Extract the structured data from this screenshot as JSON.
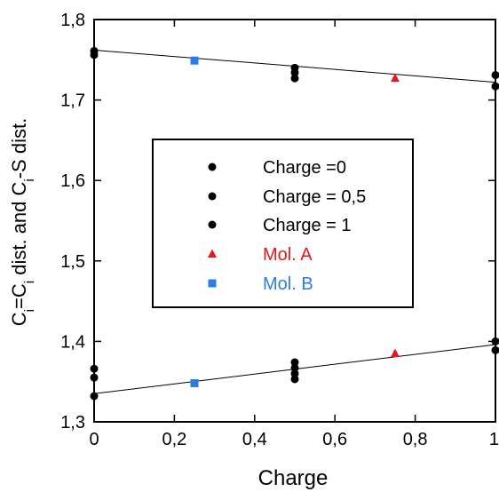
{
  "chart_data": {
    "type": "scatter",
    "xlabel": "Charge",
    "ylabel": {
      "parts": [
        {
          "text": "C",
          "sub": false
        },
        {
          "text": "i",
          "sub": true
        },
        {
          "text": "=C",
          "sub": false
        },
        {
          "text": "i",
          "sub": true
        },
        {
          "text": " dist. and C",
          "sub": false
        },
        {
          "text": "i",
          "sub": true
        },
        {
          "text": "-S dist.",
          "sub": false
        }
      ]
    },
    "xlim": [
      0,
      1
    ],
    "ylim": [
      1.3,
      1.8
    ],
    "x_ticks": [
      0,
      0.2,
      0.4,
      0.6,
      0.8,
      1
    ],
    "x_tick_labels": [
      "0",
      "0,2",
      "0,4",
      "0,6",
      "0,8",
      "1"
    ],
    "y_ticks": [
      1.3,
      1.4,
      1.5,
      1.6,
      1.7,
      1.8
    ],
    "y_tick_labels": [
      "1,3",
      "1,4",
      "1,5",
      "1,6",
      "1,7",
      "1,8"
    ],
    "grid": false,
    "legend_position": "center-left",
    "series": [
      {
        "name": "Charge =0",
        "marker": "circle",
        "color": "#000000",
        "points": [
          [
            0,
            1.761
          ],
          [
            0,
            1.756
          ],
          [
            0,
            1.366
          ],
          [
            0,
            1.355
          ],
          [
            0,
            1.332
          ]
        ]
      },
      {
        "name": "Charge = 0,5",
        "marker": "circle",
        "color": "#000000",
        "points": [
          [
            0.5,
            1.74
          ],
          [
            0.5,
            1.734
          ],
          [
            0.5,
            1.727
          ],
          [
            0.5,
            1.374
          ],
          [
            0.5,
            1.367
          ],
          [
            0.5,
            1.36
          ],
          [
            0.5,
            1.353
          ]
        ]
      },
      {
        "name": "Charge = 1",
        "marker": "circle",
        "color": "#000000",
        "points": [
          [
            1,
            1.731
          ],
          [
            1,
            1.717
          ],
          [
            1,
            1.4
          ],
          [
            1,
            1.389
          ]
        ]
      },
      {
        "name": "Mol. A",
        "marker": "triangle",
        "color": "#e8161b",
        "points": [
          [
            0.75,
            1.727
          ],
          [
            0.75,
            1.385
          ]
        ]
      },
      {
        "name": "Mol. B",
        "marker": "square",
        "color": "#2b7ce8",
        "points": [
          [
            0.25,
            1.749
          ],
          [
            0.25,
            1.348
          ]
        ]
      }
    ],
    "fit_lines": [
      {
        "x": [
          0,
          1
        ],
        "y": [
          1.762,
          1.722
        ],
        "color": "#000000"
      },
      {
        "x": [
          0,
          1
        ],
        "y": [
          1.335,
          1.396
        ],
        "color": "#000000"
      }
    ]
  }
}
